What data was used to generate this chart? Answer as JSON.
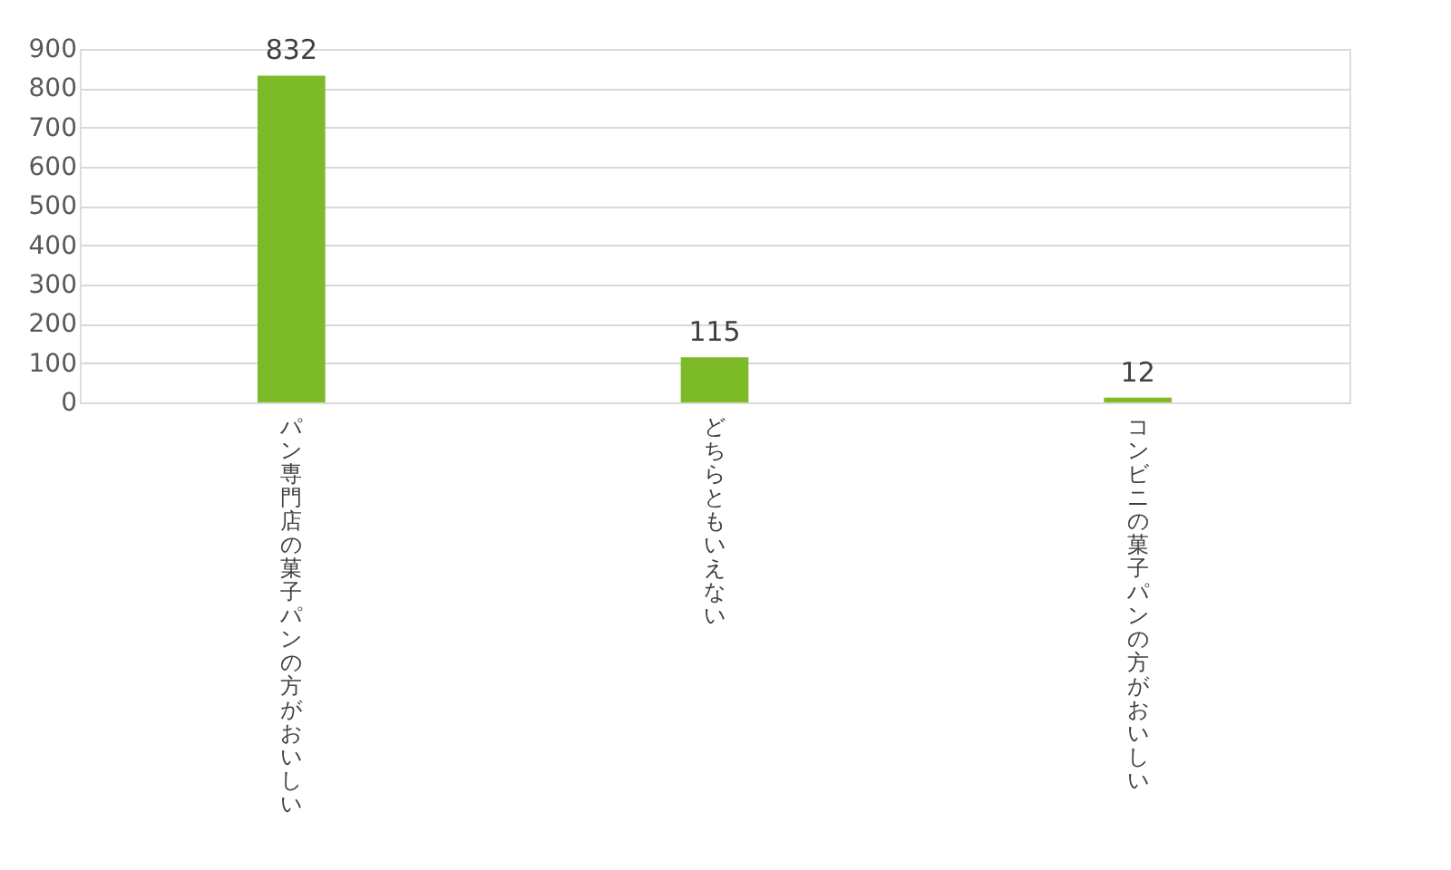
{
  "chart_data": {
    "type": "bar",
    "categories": [
      "パン専門店の菓子パンの方がおいしい",
      "どちらともいえない",
      "コンビニの菓子パンの方がおいしい"
    ],
    "values": [
      832,
      115,
      12
    ],
    "color": "#7cbb27",
    "ylim": [
      0,
      900
    ],
    "yticks": [
      0,
      100,
      200,
      300,
      400,
      500,
      600,
      700,
      800,
      900
    ],
    "grid": "y",
    "data_labels": true
  }
}
